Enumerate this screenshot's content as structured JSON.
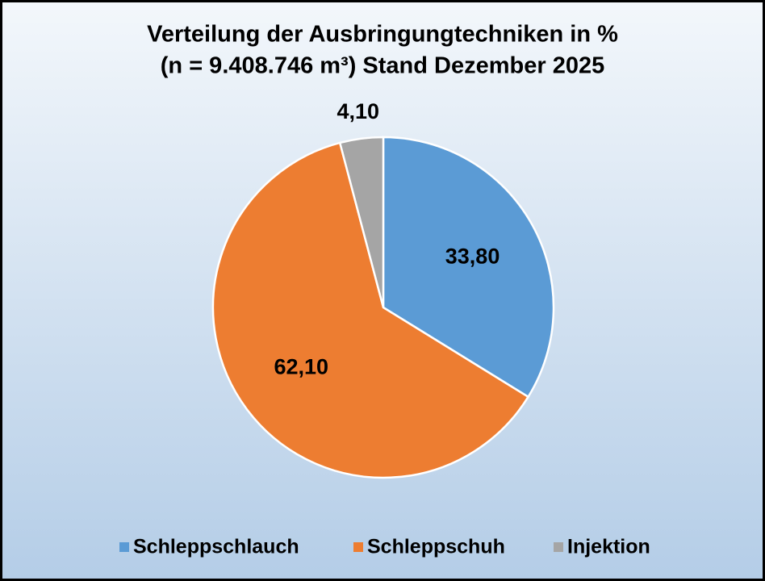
{
  "chart_data": {
    "type": "pie",
    "title": [
      "Verteilung  der Ausbringungtechniken  in %",
      "(n = 9.408.746  m³)  Stand  Dezember  2025"
    ],
    "categories": [
      "Schleppschlauch",
      "Schleppschuh",
      "Injektion"
    ],
    "values": [
      33.8,
      62.1,
      4.1
    ],
    "value_labels": [
      "33,80",
      "62,10",
      "4,10"
    ],
    "colors": [
      "#5b9bd5",
      "#ed7d31",
      "#a5a5a5"
    ],
    "legend": "bottom"
  }
}
